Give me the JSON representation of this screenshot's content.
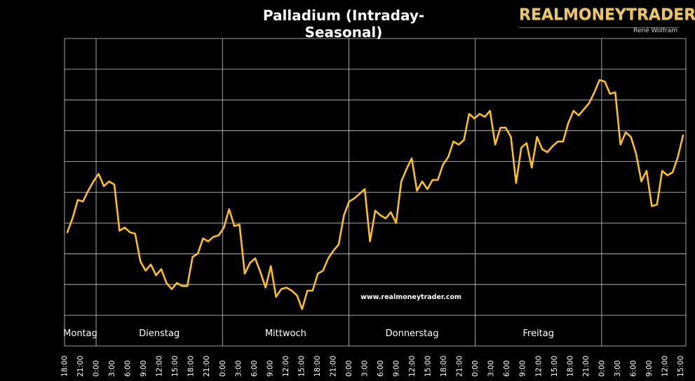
{
  "title": "Palladium (Intraday-Seasonal)",
  "brand": {
    "name": "REALMONEYTRADER",
    "author": "René Wolfram"
  },
  "watermark": "www.realmoneytrader.com",
  "colors": {
    "background": "#000000",
    "line": "#fbbf24",
    "grid": "#d0d0d0",
    "brand": "#e8c56a"
  },
  "chart_data": {
    "type": "line",
    "title": "Palladium (Intraday-Seasonal)",
    "xlabel": "",
    "ylabel": "",
    "grid": true,
    "y_tick_labels_shown": false,
    "ylim": [
      0,
      100
    ],
    "y_gridlines": 10,
    "days": [
      "Montag",
      "Dienstag",
      "Mittwoch",
      "Donnerstag",
      "Freitag"
    ],
    "x_tick_labels": [
      "18:00",
      "21:00",
      "0:00",
      "3:00",
      "6:00",
      "9:00",
      "12:00",
      "15:00",
      "18:00",
      "21:00",
      "0:00",
      "3:00",
      "6:00",
      "9:00",
      "12:00",
      "15:00",
      "18:00",
      "21:00",
      "0:00",
      "3:00",
      "6:00",
      "9:00",
      "12:00",
      "15:00",
      "18:00",
      "21:00",
      "0:00",
      "3:00",
      "6:00",
      "9:00",
      "12:00",
      "15:00",
      "18:00",
      "21:00",
      "0:00",
      "3:00",
      "6:00",
      "9:00",
      "12:00",
      "15:00"
    ],
    "series": [
      {
        "values": [
          37.0,
          41.5,
          47.5,
          47.0,
          50.5,
          53.5,
          56.0,
          52.0,
          53.5,
          52.5,
          37.5,
          38.5,
          37.0,
          36.5,
          27.5,
          24.5,
          26.5,
          23.0,
          25.0,
          20.5,
          18.5,
          20.5,
          19.5,
          19.5,
          29.0,
          30.0,
          35.0,
          34.0,
          35.5,
          36.0,
          38.5,
          44.5,
          39.0,
          39.5,
          23.5,
          27.0,
          28.5,
          24.0,
          19.0,
          26.0,
          16.0,
          18.5,
          19.0,
          18.0,
          16.5,
          12.0,
          18.0,
          18.0,
          23.5,
          24.5,
          28.5,
          31.0,
          33.0,
          42.5,
          47.0,
          48.0,
          49.5,
          51.0,
          34.0,
          44.0,
          42.5,
          41.5,
          43.5,
          40.0,
          53.5,
          57.5,
          61.0,
          50.5,
          53.5,
          51.0,
          54.0,
          54.0,
          59.0,
          61.5,
          66.5,
          65.5,
          67.0,
          75.5,
          74.0,
          75.5,
          74.5,
          76.5,
          65.5,
          71.0,
          71.0,
          68.0,
          53.0,
          64.5,
          66.0,
          58.0,
          68.0,
          64.0,
          63.0,
          65.0,
          66.5,
          66.5,
          72.5,
          76.5,
          75.0,
          77.0,
          79.0,
          82.5,
          86.5,
          86.0,
          82.0,
          82.5,
          65.5,
          69.5,
          68.0,
          62.5,
          53.5,
          57.0,
          45.5,
          46.0,
          57.0,
          55.5,
          56.5,
          61.5,
          68.5
        ]
      }
    ]
  }
}
